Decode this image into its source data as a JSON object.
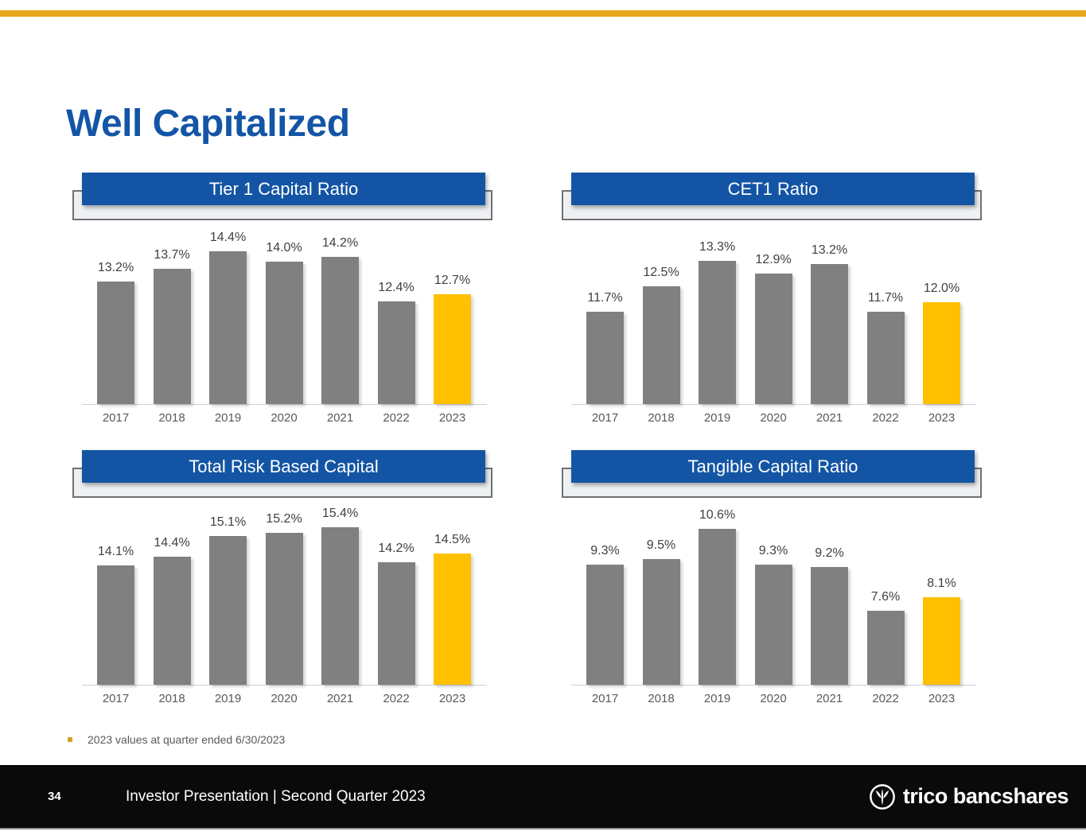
{
  "page": {
    "title": "Well Capitalized"
  },
  "colors": {
    "top_bar_gold": "#E7A71E",
    "title_blue": "#1355A6",
    "header_blue": "#1355A4",
    "bar_gray": "#808080",
    "highlight_gold": "#FFC000",
    "footer_black": "#0a0a0a",
    "label_dark_gray": "#404040",
    "axis_text_gray": "#595959"
  },
  "chart_data": [
    {
      "type": "bar",
      "title": "Tier 1 Capital Ratio",
      "categories": [
        "2017",
        "2018",
        "2019",
        "2020",
        "2021",
        "2022",
        "2023"
      ],
      "values": [
        13.2,
        13.7,
        14.4,
        14.0,
        14.2,
        12.4,
        12.7
      ],
      "labels": [
        "13.2%",
        "13.7%",
        "14.4%",
        "14.0%",
        "14.2%",
        "12.4%",
        "12.7%"
      ],
      "highlight_index": 6,
      "ylim": [
        8.3,
        15.3
      ],
      "xlabel": "",
      "ylabel": "",
      "grid": false,
      "legend": false
    },
    {
      "type": "bar",
      "title": "CET1 Ratio",
      "categories": [
        "2017",
        "2018",
        "2019",
        "2020",
        "2021",
        "2022",
        "2023"
      ],
      "values": [
        11.7,
        12.5,
        13.3,
        12.9,
        13.2,
        11.7,
        12.0
      ],
      "labels": [
        "11.7%",
        "12.5%",
        "13.3%",
        "12.9%",
        "13.2%",
        "11.7%",
        "12.0%"
      ],
      "highlight_index": 6,
      "ylim": [
        8.8,
        14.3
      ],
      "xlabel": "",
      "ylabel": "",
      "grid": false,
      "legend": false
    },
    {
      "type": "bar",
      "title": "Total Risk Based Capital",
      "categories": [
        "2017",
        "2018",
        "2019",
        "2020",
        "2021",
        "2022",
        "2023"
      ],
      "values": [
        14.1,
        14.4,
        15.1,
        15.2,
        15.4,
        14.2,
        14.5
      ],
      "labels": [
        "14.1%",
        "14.4%",
        "15.1%",
        "15.2%",
        "15.4%",
        "14.2%",
        "14.5%"
      ],
      "highlight_index": 6,
      "ylim": [
        10.0,
        16.0
      ],
      "xlabel": "",
      "ylabel": "",
      "grid": false,
      "legend": false
    },
    {
      "type": "bar",
      "title": "Tangible Capital Ratio",
      "categories": [
        "2017",
        "2018",
        "2019",
        "2020",
        "2021",
        "2022",
        "2023"
      ],
      "values": [
        9.3,
        9.5,
        10.6,
        9.3,
        9.2,
        7.6,
        8.1
      ],
      "labels": [
        "9.3%",
        "9.5%",
        "10.6%",
        "9.3%",
        "9.2%",
        "7.6%",
        "8.1%"
      ],
      "highlight_index": 6,
      "ylim": [
        4.9,
        11.3
      ],
      "xlabel": "",
      "ylabel": "",
      "grid": false,
      "legend": false
    }
  ],
  "footnote": {
    "text": "2023 values at quarter ended 6/30/2023"
  },
  "footer": {
    "page_number": "34",
    "text": "Investor Presentation | Second Quarter 2023",
    "logo_text": "trico bancshares"
  }
}
